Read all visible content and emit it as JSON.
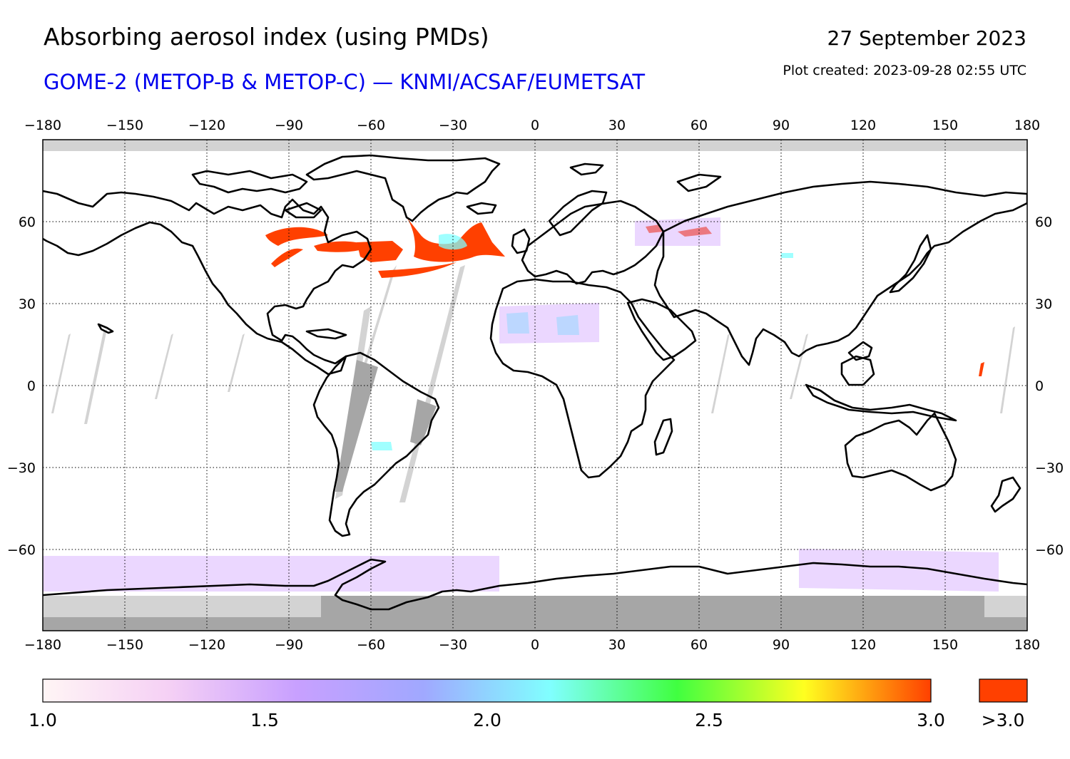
{
  "header": {
    "title": "Absorbing aerosol index (using PMDs)",
    "subtitle": "GOME-2 (METOP-B & METOP-C) — KNMI/ACSAF/EUMETSAT",
    "date": "27 September 2023",
    "created": "Plot created: 2023-09-28 02:55 UTC"
  },
  "colors": {
    "subtitle": "#0000ee",
    "ocean_land": "#ffffff",
    "no_data": "#d3d3d3",
    "polar_night": "#a6a6a6",
    "high_aai": "#ff4000",
    "coast": "#000000"
  },
  "map": {
    "projection": "equirectangular",
    "lon_range": [
      -180,
      180
    ],
    "lat_range": [
      -90,
      90
    ],
    "lon_ticks": [
      "−180",
      "−150",
      "−120",
      "−90",
      "−60",
      "−30",
      "0",
      "30",
      "60",
      "90",
      "120",
      "150",
      "180"
    ],
    "lat_ticks": [
      "60",
      "30",
      "0",
      "−30",
      "−60"
    ],
    "grid": "dotted"
  },
  "colorbar": {
    "ticks": [
      "1.0",
      "1.5",
      "2.0",
      "2.5",
      "3.0"
    ],
    "overflow_label": ">3.0",
    "stops": [
      "#fff5f5",
      "#f5d0f5",
      "#c8a0ff",
      "#a0a8ff",
      "#80ffff",
      "#40ff40",
      "#ffff20",
      "#ff4000"
    ]
  }
}
